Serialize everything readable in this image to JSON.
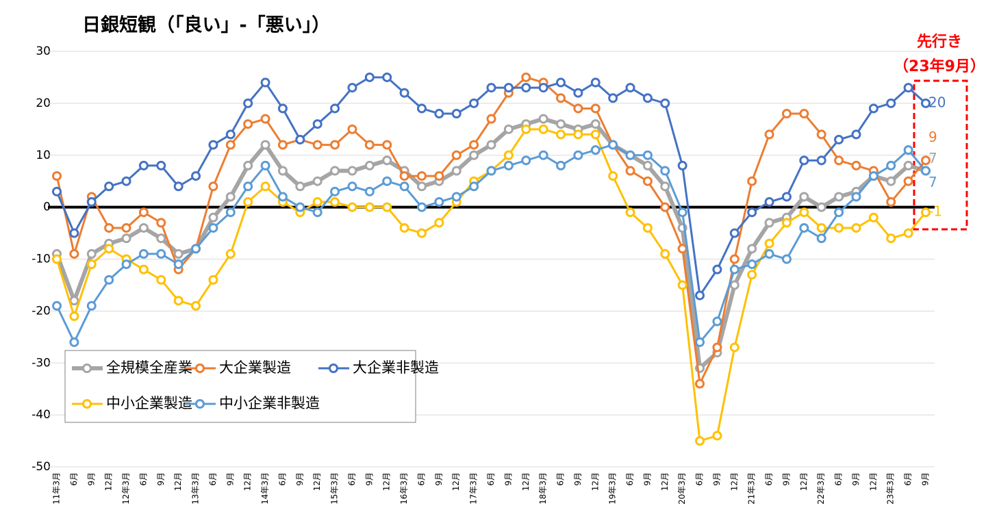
{
  "chart_data": {
    "type": "line",
    "title": "日銀短観（「良い」-「悪い」）",
    "annotations": [
      "先行き",
      "（23年9月）"
    ],
    "categories": [
      "11年3月",
      "6月",
      "9月",
      "12月",
      "12年3月",
      "6月",
      "9月",
      "12月",
      "13年3月",
      "6月",
      "9月",
      "12月",
      "14年3月",
      "6月",
      "9月",
      "12月",
      "15年3月",
      "6月",
      "9月",
      "12月",
      "16年3月",
      "6月",
      "9月",
      "12月",
      "17年3月",
      "6月",
      "9月",
      "12月",
      "18年3月",
      "6月",
      "9月",
      "12月",
      "19年3月",
      "6月",
      "9月",
      "12月",
      "20年3月",
      "6月",
      "9月",
      "12月",
      "21年3月",
      "6月",
      "9月",
      "12月",
      "22年3月",
      "6月",
      "9月",
      "12月",
      "23年3月",
      "6月",
      "9月"
    ],
    "series": [
      {
        "name": "全規模全産業",
        "color": "#a5a5a5",
        "values": [
          -9,
          -18,
          -9,
          -7,
          -6,
          -4,
          -6,
          -9,
          -8,
          -2,
          2,
          8,
          12,
          7,
          4,
          5,
          7,
          7,
          8,
          9,
          7,
          4,
          5,
          7,
          10,
          12,
          15,
          16,
          17,
          16,
          15,
          16,
          12,
          10,
          8,
          4,
          -4,
          -31,
          -28,
          -15,
          -8,
          -3,
          -2,
          2,
          0,
          2,
          3,
          6,
          5,
          8,
          7
        ]
      },
      {
        "name": "大企業製造",
        "color": "#ed7d31",
        "values": [
          6,
          -9,
          2,
          -4,
          -4,
          -1,
          -3,
          -12,
          -8,
          4,
          12,
          16,
          17,
          12,
          13,
          12,
          12,
          15,
          12,
          12,
          6,
          6,
          6,
          10,
          12,
          17,
          22,
          25,
          24,
          21,
          19,
          19,
          12,
          7,
          5,
          0,
          -8,
          -34,
          -27,
          -10,
          5,
          14,
          18,
          18,
          14,
          9,
          8,
          7,
          1,
          5,
          9
        ]
      },
      {
        "name": "大企業非製造",
        "color": "#4472c4",
        "values": [
          3,
          -5,
          1,
          4,
          5,
          8,
          8,
          4,
          6,
          12,
          14,
          20,
          24,
          19,
          13,
          16,
          19,
          23,
          25,
          25,
          22,
          19,
          18,
          18,
          20,
          23,
          23,
          23,
          23,
          24,
          22,
          24,
          21,
          23,
          21,
          20,
          8,
          -17,
          -12,
          -5,
          -1,
          1,
          2,
          9,
          9,
          13,
          14,
          19,
          20,
          23,
          20
        ]
      },
      {
        "name": "中小企業製造",
        "color": "#ffc000",
        "values": [
          -10,
          -21,
          -11,
          -8,
          -10,
          -12,
          -14,
          -18,
          -19,
          -14,
          -9,
          1,
          4,
          1,
          -1,
          1,
          1,
          0,
          0,
          0,
          -4,
          -5,
          -3,
          1,
          5,
          7,
          10,
          15,
          15,
          14,
          14,
          14,
          6,
          -1,
          -4,
          -9,
          -15,
          -45,
          -44,
          -27,
          -13,
          -7,
          -3,
          -1,
          -4,
          -4,
          -4,
          -2,
          -6,
          -5,
          -1
        ]
      },
      {
        "name": "中小企業非製造",
        "color": "#5b9bd5",
        "values": [
          -19,
          -26,
          -19,
          -14,
          -11,
          -9,
          -9,
          -11,
          -8,
          -4,
          -1,
          4,
          8,
          2,
          0,
          -1,
          3,
          4,
          3,
          5,
          4,
          0,
          1,
          2,
          4,
          7,
          8,
          9,
          10,
          8,
          10,
          11,
          12,
          10,
          10,
          7,
          -1,
          -26,
          -22,
          -12,
          -11,
          -9,
          -10,
          -4,
          -6,
          -1,
          2,
          6,
          8,
          11,
          7
        ]
      }
    ],
    "ylim": [
      -50,
      30
    ],
    "yticks": [
      -50,
      -40,
      -30,
      -20,
      -10,
      0,
      10,
      20,
      30
    ],
    "grid": true,
    "legend": "lower left"
  }
}
